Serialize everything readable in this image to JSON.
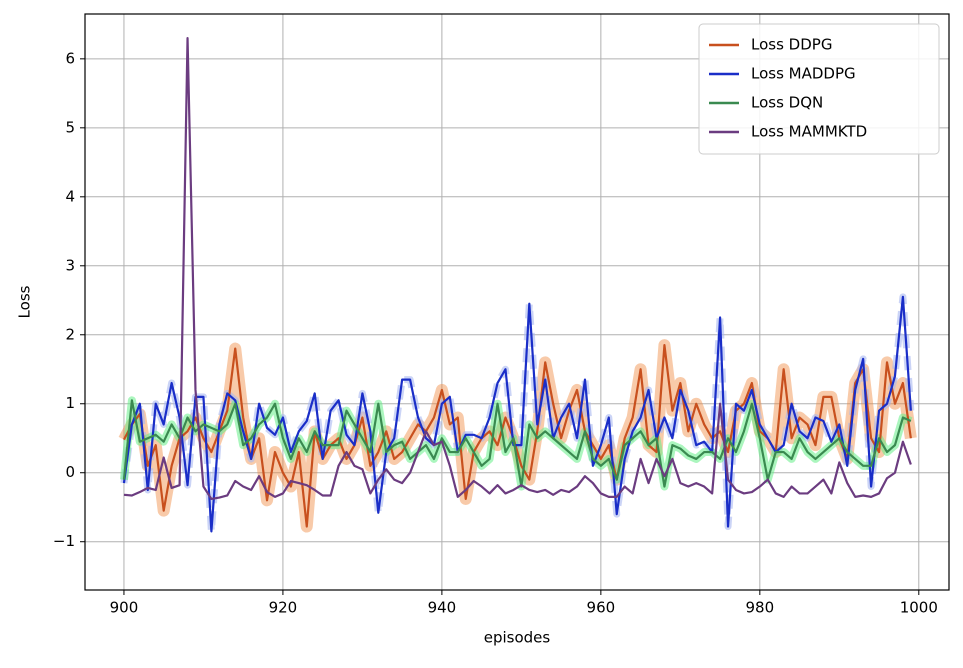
{
  "chart_data": {
    "type": "line",
    "xlabel": "episodes",
    "ylabel": "Loss",
    "xlim": [
      895.1,
      1003.8
    ],
    "ylim": [
      -1.7,
      6.65
    ],
    "xticks": [
      900,
      920,
      940,
      960,
      980,
      1000
    ],
    "yticks": [
      {
        "value": -1,
        "label": "−1"
      },
      0,
      1,
      2,
      3,
      4,
      5,
      6
    ],
    "grid": true,
    "legend": "upper right",
    "x": [
      900,
      901,
      902,
      903,
      904,
      905,
      906,
      907,
      908,
      909,
      910,
      911,
      912,
      913,
      914,
      915,
      916,
      917,
      918,
      919,
      920,
      921,
      922,
      923,
      924,
      925,
      926,
      927,
      928,
      929,
      930,
      931,
      932,
      933,
      934,
      935,
      936,
      937,
      938,
      939,
      940,
      941,
      942,
      943,
      944,
      945,
      946,
      947,
      948,
      949,
      950,
      951,
      952,
      953,
      954,
      955,
      956,
      957,
      958,
      959,
      960,
      961,
      962,
      963,
      964,
      965,
      966,
      967,
      968,
      969,
      970,
      971,
      972,
      973,
      974,
      975,
      976,
      977,
      978,
      979,
      980,
      981,
      982,
      983,
      984,
      985,
      986,
      987,
      988,
      989,
      990,
      991,
      992,
      993,
      994,
      995,
      996,
      997,
      998,
      999
    ],
    "series": [
      {
        "name": "Loss DDPG",
        "color": "#c8501e",
        "shade": "#f08a40",
        "values": [
          0.48,
          0.7,
          0.85,
          0.1,
          0.4,
          -0.55,
          0.1,
          0.5,
          0.6,
          0.8,
          0.5,
          0.3,
          0.6,
          0.9,
          1.8,
          0.8,
          0.2,
          0.5,
          -0.4,
          0.3,
          0.0,
          -0.2,
          0.3,
          -0.78,
          0.6,
          0.2,
          0.4,
          0.5,
          0.2,
          0.4,
          0.8,
          0.1,
          0.3,
          0.6,
          0.2,
          0.3,
          0.5,
          0.7,
          0.6,
          0.8,
          1.2,
          0.7,
          0.8,
          -0.38,
          0.3,
          0.5,
          0.6,
          0.4,
          0.8,
          0.5,
          0.1,
          -0.1,
          0.6,
          1.6,
          1.0,
          0.5,
          0.9,
          1.2,
          0.6,
          0.4,
          0.2,
          0.4,
          -0.1,
          0.5,
          0.8,
          1.5,
          0.4,
          0.3,
          1.85,
          0.9,
          1.3,
          0.6,
          1.0,
          0.7,
          0.5,
          0.6,
          0.3,
          0.9,
          1.0,
          1.3,
          0.6,
          0.5,
          0.3,
          1.5,
          0.5,
          0.8,
          0.7,
          0.4,
          1.1,
          1.1,
          0.5,
          0.2,
          1.3,
          1.5,
          0.5,
          0.3,
          1.6,
          1.0,
          1.3,
          0.5
        ]
      },
      {
        "name": "Loss MADDPG",
        "color": "#1a2ec8",
        "shade": "#a8b8f0",
        "values": [
          -0.15,
          0.7,
          1.0,
          -0.25,
          1.0,
          0.7,
          1.3,
          0.8,
          -0.18,
          1.1,
          1.1,
          -0.85,
          0.7,
          1.15,
          1.05,
          0.6,
          0.2,
          1.0,
          0.65,
          0.55,
          0.8,
          0.3,
          0.6,
          0.75,
          1.15,
          0.2,
          0.9,
          1.05,
          0.55,
          0.4,
          1.15,
          0.6,
          -0.58,
          0.3,
          0.5,
          1.35,
          1.35,
          0.8,
          0.5,
          0.4,
          1.0,
          1.1,
          0.3,
          0.55,
          0.55,
          0.5,
          0.8,
          1.3,
          1.5,
          0.4,
          0.4,
          2.45,
          0.7,
          1.35,
          0.5,
          0.8,
          1.0,
          0.5,
          1.35,
          0.1,
          0.4,
          0.8,
          -0.6,
          0.2,
          0.6,
          0.8,
          1.2,
          0.5,
          0.8,
          0.5,
          1.2,
          0.9,
          0.4,
          0.45,
          0.3,
          2.25,
          -0.78,
          1.0,
          0.9,
          1.2,
          0.7,
          0.5,
          0.3,
          0.4,
          1.0,
          0.6,
          0.5,
          0.8,
          0.75,
          0.45,
          0.7,
          0.1,
          1.2,
          1.65,
          -0.2,
          0.9,
          1.0,
          1.4,
          2.55,
          0.9
        ]
      },
      {
        "name": "Loss DQN",
        "color": "#3a8a50",
        "shade": "#66ee88",
        "values": [
          -0.1,
          1.05,
          0.45,
          0.5,
          0.55,
          0.45,
          0.7,
          0.5,
          0.8,
          0.6,
          0.7,
          0.65,
          0.6,
          0.7,
          1.0,
          0.4,
          0.5,
          0.7,
          0.8,
          1.0,
          0.5,
          0.2,
          0.5,
          0.3,
          0.6,
          0.4,
          0.4,
          0.4,
          0.9,
          0.7,
          0.5,
          0.3,
          1.0,
          0.3,
          0.4,
          0.45,
          0.2,
          0.3,
          0.4,
          0.2,
          0.5,
          0.3,
          0.3,
          0.5,
          0.3,
          0.1,
          0.2,
          1.0,
          0.3,
          0.5,
          -0.2,
          0.7,
          0.5,
          0.6,
          0.5,
          0.4,
          0.3,
          0.2,
          0.6,
          0.2,
          0.1,
          0.2,
          -0.1,
          0.4,
          0.5,
          0.6,
          0.4,
          0.5,
          -0.2,
          0.4,
          0.35,
          0.25,
          0.2,
          0.3,
          0.3,
          0.2,
          0.5,
          0.3,
          0.6,
          1.0,
          0.5,
          -0.1,
          0.3,
          0.3,
          0.2,
          0.5,
          0.3,
          0.2,
          0.3,
          0.4,
          0.5,
          0.3,
          0.2,
          0.1,
          0.1,
          0.5,
          0.3,
          0.4,
          0.8,
          0.75
        ]
      },
      {
        "name": "Loss MAMMKTD",
        "color": "#6b3c80",
        "values": [
          -0.32,
          -0.33,
          -0.28,
          -0.22,
          -0.25,
          0.22,
          -0.22,
          -0.18,
          6.3,
          1.2,
          -0.2,
          -0.38,
          -0.36,
          -0.33,
          -0.12,
          -0.2,
          -0.25,
          -0.05,
          -0.28,
          -0.35,
          -0.3,
          -0.12,
          -0.15,
          -0.18,
          -0.25,
          -0.33,
          -0.33,
          0.1,
          0.3,
          0.1,
          0.05,
          -0.3,
          -0.1,
          0.05,
          -0.1,
          -0.15,
          0.0,
          0.3,
          0.6,
          0.4,
          0.45,
          0.1,
          -0.35,
          -0.25,
          -0.12,
          -0.2,
          -0.3,
          -0.18,
          -0.3,
          -0.25,
          -0.18,
          -0.25,
          -0.28,
          -0.25,
          -0.32,
          -0.25,
          -0.28,
          -0.2,
          -0.05,
          -0.15,
          -0.3,
          -0.35,
          -0.35,
          -0.2,
          -0.3,
          0.2,
          -0.15,
          0.2,
          -0.05,
          0.2,
          -0.15,
          -0.2,
          -0.15,
          -0.2,
          -0.3,
          1.0,
          -0.1,
          -0.25,
          -0.3,
          -0.28,
          -0.2,
          -0.1,
          -0.3,
          -0.35,
          -0.2,
          -0.3,
          -0.3,
          -0.2,
          -0.1,
          -0.3,
          0.15,
          -0.15,
          -0.35,
          -0.33,
          -0.35,
          -0.3,
          -0.08,
          0.0,
          0.45,
          0.12
        ]
      }
    ]
  }
}
